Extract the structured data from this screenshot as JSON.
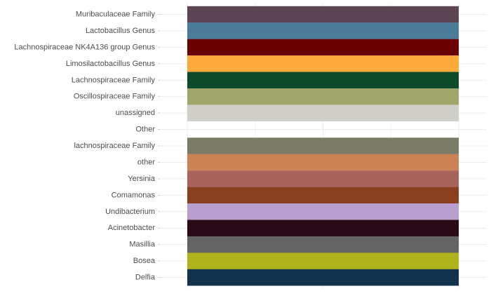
{
  "chart_data": {
    "type": "bar",
    "orientation": "horizontal",
    "stacked": true,
    "grid": true,
    "x_axis_labels_visible": false,
    "categories": [
      "Muribaculaceae Family",
      "Lactobacillus Genus",
      "Lachnospiraceae NK4A136 group Genus",
      "Limosilactobacillus Genus",
      "Lachnospiraceae Family",
      "Oscillospiraceae Family",
      "unassigned",
      "Other",
      "lachnospiraceae Family",
      "other",
      "Yersinia",
      "Comamonas",
      "Undibacterium",
      "Acinetobacter",
      "Masillia",
      "Bosea",
      "Delfia"
    ],
    "values": [
      1,
      1,
      1,
      1,
      1,
      1,
      1,
      0,
      1,
      1,
      1,
      1,
      1,
      1,
      1,
      1,
      1
    ],
    "colors": [
      "#5e4553",
      "#4a7c9a",
      "#6b0000",
      "#fdaa3a",
      "#0c4a2a",
      "#a0a56a",
      "#d0d0c8",
      "#ffffff",
      "#7a7c66",
      "#cd8255",
      "#a8635b",
      "#8a401f",
      "#b89fcf",
      "#2a0a17",
      "#646464",
      "#b0b31b",
      "#12324e"
    ],
    "colors_meaning": "fill colour of each bar (one per category)",
    "xlim": [
      0,
      1
    ]
  }
}
